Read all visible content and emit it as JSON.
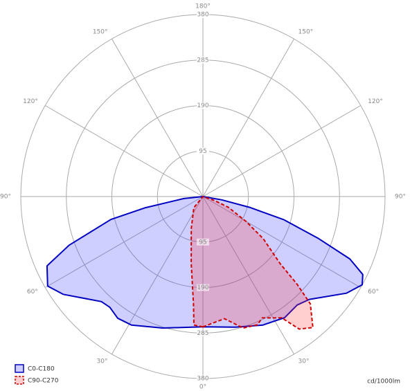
{
  "chart_data": {
    "type": "polar",
    "unit_label": "cd/1000lm",
    "rlim": [
      0,
      380
    ],
    "rticks": [
      95,
      190,
      285,
      380
    ],
    "angle_ticks": [
      {
        "value": 0,
        "label": "0°"
      },
      {
        "value": 30,
        "label": "30°"
      },
      {
        "value": 60,
        "label": "60°"
      },
      {
        "value": 90,
        "label": "90°"
      },
      {
        "value": 120,
        "label": "120°"
      },
      {
        "value": 150,
        "label": "150°"
      },
      {
        "value": 180,
        "label": "180°"
      },
      {
        "value": 210,
        "label": "150°"
      },
      {
        "value": 240,
        "label": "120°"
      },
      {
        "value": 270,
        "label": "90°"
      },
      {
        "value": 300,
        "label": "60°"
      },
      {
        "value": 330,
        "label": "30°"
      }
    ],
    "grid": true,
    "series": [
      {
        "name": "C0-C180",
        "color": "#0000c0",
        "fill": "rgba(60,60,255,0.25)",
        "dashed": false,
        "x": [
          0,
          14,
          25,
          34,
          41,
          46,
          56,
          61,
          64,
          67,
          70,
          74,
          77,
          80,
          180,
          276,
          281,
          284,
          290,
          294,
          300,
          305,
          316,
          320,
          325,
          331,
          343
        ],
        "values": [
          272,
          281,
          296,
          305,
          300,
          309,
          361,
          380,
          371,
          333,
          257,
          176,
          100,
          40,
          0,
          40,
          122,
          198,
          297,
          356,
          374,
          356,
          305,
          302,
          310,
          307,
          287
        ]
      },
      {
        "name": "C90-C270",
        "color": "#d00000",
        "fill": "rgba(255,60,60,0.25)",
        "dashed": true,
        "x": [
          0,
          10,
          17,
          23,
          26,
          33,
          36,
          40,
          45,
          47,
          49,
          55,
          60,
          67,
          71,
          180,
          321,
          340,
          350,
          355,
          356
        ],
        "values": [
          272,
          259,
          287,
          291,
          282,
          302,
          342,
          357,
          317,
          269,
          213,
          154,
          104,
          58,
          26,
          0,
          30,
          71,
          141,
          226,
          269
        ]
      }
    ]
  }
}
